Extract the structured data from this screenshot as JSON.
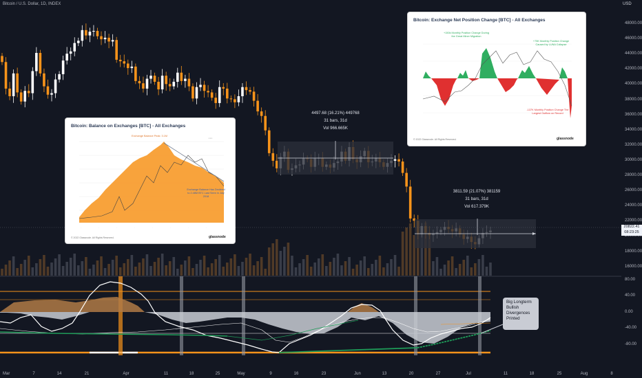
{
  "header": {
    "title": "Bitcoin / U.S. Dollar, 1D, INDEX",
    "currency": "USD"
  },
  "price_axis": {
    "ticks": [
      "48000.00",
      "46000.00",
      "44000.00",
      "42000.00",
      "40000.00",
      "38000.00",
      "36000.00",
      "34000.00",
      "32000.00",
      "30000.00",
      "28000.00",
      "26000.00",
      "24000.00",
      "22000.00",
      "20000.00",
      "18000.00",
      "16000.00"
    ],
    "last_price": "20822.41",
    "countdown": "08:23:25"
  },
  "osc_axis": {
    "ticks": [
      "80.00",
      "40.00",
      "0.00",
      "-40.00",
      "-80.00"
    ]
  },
  "time_axis": {
    "ticks": [
      "Mar",
      "7",
      "14",
      "21",
      "Apr",
      "11",
      "18",
      "25",
      "May",
      "9",
      "16",
      "23",
      "Jun",
      "13",
      "20",
      "27",
      "Jul",
      "11",
      "18",
      "25",
      "Aug",
      "8"
    ]
  },
  "range_stats": [
    {
      "change": "4497.68 (16.21%) 449768",
      "bars": "31 bars, 31d",
      "vol": "Vol 966.665K"
    },
    {
      "change": "3811.59 (21.07%) 381159",
      "bars": "31 bars, 31d",
      "vol": "Vol 617.379K"
    }
  ],
  "card_balance": {
    "title": "Bitcoin: Balance on Exchanges [BTC] - All Exchanges",
    "note_peak": "Exchange Balance Peak: 3.1M",
    "note_decline": "Exchange Balance Has Declined to 2.48M BTC Last Seen in July 2018",
    "brand": "glassnode",
    "footer": "© 2022 Glassnode. All Rights Reserved."
  },
  "card_netpos": {
    "title": "Bitcoin: Exchange Net Position Change [BTC] - All Exchanges",
    "note_migration": "+150k Monthly Position Change During the Great Miner Migration",
    "note_luna": "+75K Monthly Position Change Caused by LUNA Collapse",
    "note_outflow": "-137K Monthly Position Change The Largest Outflow on Record",
    "brand": "glassnode",
    "footer": "© 2022 Glassnode. All Rights Reserved."
  },
  "callout": {
    "text": "Big Longterm Bullish Divergences Printed"
  },
  "colors": {
    "background": "#131722",
    "up": "#ffffff",
    "down": "#f7931a",
    "oscillator_fill": "#c9ccd4",
    "divergence": "#1e9b58"
  },
  "chart_data": {
    "type": "candlestick",
    "ylim": [
      15000,
      50000
    ],
    "series": [
      {
        "name": "BTC",
        "values": [
          43000,
          39500,
          38500,
          41500,
          39000,
          37800,
          39200,
          38900,
          41800,
          44200,
          41500,
          39800,
          38700,
          38900,
          40700,
          41400,
          43200,
          44100,
          44400,
          45500,
          45800,
          47200,
          46500,
          47000,
          47100,
          46400,
          46000,
          46200,
          45700,
          45900,
          43300,
          43100,
          42800,
          42200,
          42400,
          40500,
          40200,
          39500,
          40800,
          41200,
          40400,
          39400,
          41200,
          40100,
          39800,
          40400,
          41600,
          40500,
          40800,
          39800,
          38200,
          39700,
          40000,
          39200,
          39000,
          38300,
          37600,
          39700,
          39500,
          38200,
          38100,
          37700,
          38500,
          39700,
          39300,
          39100,
          37900,
          36500,
          35900,
          34000,
          31000,
          30000,
          29000,
          30500,
          31200,
          28800,
          29000,
          29400,
          29500,
          30300,
          30200,
          29200,
          30300,
          30400,
          29200,
          29500,
          29100,
          29700,
          29900,
          31200,
          30000,
          31800,
          30200,
          29800,
          30600,
          31300,
          29800,
          29900,
          30400,
          29800,
          29200,
          29700,
          30000,
          30200,
          29900,
          28400,
          26600,
          22400,
          22100,
          20300,
          21400,
          20500,
          20200,
          20400,
          20600,
          20900,
          21300,
          21000,
          20700,
          21100,
          20300,
          19700,
          20000,
          19300,
          19000,
          19800,
          20500,
          20600,
          20800
        ]
      }
    ]
  }
}
